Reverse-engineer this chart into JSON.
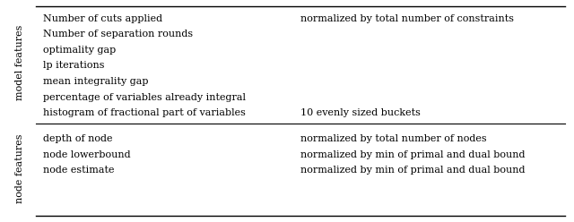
{
  "fig_width": 6.4,
  "fig_height": 2.48,
  "dpi": 100,
  "background_color": "#ffffff",
  "model_label": "model features",
  "node_label": "node features",
  "font_size": 8.0,
  "label_font_size": 8.0,
  "model_rows": [
    [
      "Number of cuts applied",
      "normalized by total number of constraints"
    ],
    [
      "Number of separation rounds",
      ""
    ],
    [
      "optimality gap",
      ""
    ],
    [
      "lp iterations",
      ""
    ],
    [
      "mean integrality gap",
      ""
    ],
    [
      "percentage of variables already integral",
      ""
    ],
    [
      "histogram of fractional part of variables",
      "10 evenly sized buckets"
    ]
  ],
  "node_rows": [
    [
      "depth of node",
      "normalized by total number of nodes"
    ],
    [
      "node lowerbound",
      "normalized by min of primal and dual bound"
    ],
    [
      "node estimate",
      "normalized by min of primal and dual bound"
    ]
  ]
}
